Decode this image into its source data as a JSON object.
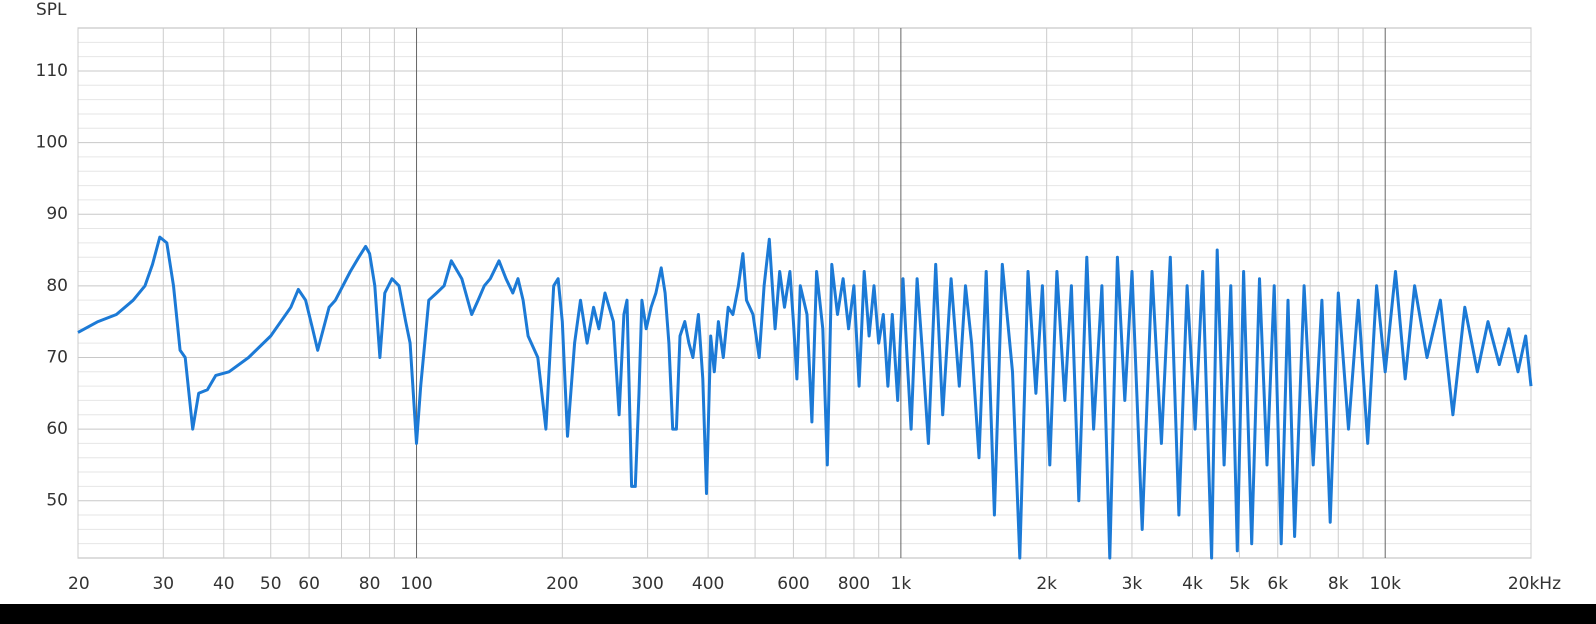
{
  "chart_data": {
    "type": "line",
    "y_label": "SPL",
    "log_x": true,
    "grid": true,
    "xlim": [
      20,
      20000
    ],
    "ylim": [
      42,
      116
    ],
    "xticks": [
      20,
      30,
      40,
      50,
      60,
      80,
      100,
      200,
      300,
      400,
      600,
      800,
      {
        "value": 1000,
        "label": "1k"
      },
      {
        "value": 2000,
        "label": "2k"
      },
      {
        "value": 3000,
        "label": "3k"
      },
      {
        "value": 4000,
        "label": "4k"
      },
      {
        "value": 5000,
        "label": "5k"
      },
      {
        "value": 6000,
        "label": "6k"
      },
      {
        "value": 8000,
        "label": "8k"
      },
      {
        "value": 10000,
        "label": "10k"
      },
      {
        "value": 20000,
        "label": "20kHz"
      }
    ],
    "xminorticks": [
      70,
      90,
      500,
      700,
      900,
      7000,
      9000
    ],
    "yticks": [
      50,
      60,
      70,
      80,
      90,
      100,
      110
    ],
    "yminorticks": [
      44,
      46,
      48,
      52,
      54,
      56,
      58,
      62,
      64,
      66,
      68,
      72,
      74,
      76,
      78,
      82,
      84,
      86,
      88,
      92,
      94,
      96,
      98,
      102,
      104,
      106,
      108,
      112,
      114
    ],
    "x": [
      20,
      22,
      24,
      26,
      27.5,
      28.5,
      29.5,
      30.5,
      31.5,
      32.5,
      33.3,
      34.5,
      35.5,
      37,
      38.5,
      41,
      45,
      50,
      55,
      57,
      59,
      61,
      62.5,
      66,
      68,
      73,
      76,
      78.5,
      80,
      82,
      84,
      86,
      89,
      92,
      95,
      97,
      100,
      102,
      106,
      110,
      114,
      118,
      124,
      130,
      134,
      138,
      142,
      148,
      153,
      158,
      162,
      166,
      170,
      178,
      185,
      192,
      196,
      200,
      205,
      212,
      218,
      225,
      232,
      238,
      245,
      255,
      262,
      268,
      272,
      278,
      283,
      288,
      292,
      298,
      305,
      312,
      320,
      326,
      332,
      338,
      344,
      350,
      358,
      365,
      372,
      382,
      390,
      397,
      405,
      412,
      420,
      430,
      440,
      450,
      462,
      472,
      480,
      495,
      510,
      522,
      535,
      550,
      562,
      575,
      590,
      600,
      610,
      620,
      640,
      655,
      670,
      690,
      705,
      720,
      740,
      760,
      780,
      800,
      820,
      840,
      860,
      880,
      900,
      920,
      940,
      960,
      985,
      1010,
      1030,
      1050,
      1080,
      1110,
      1140,
      1180,
      1220,
      1270,
      1320,
      1360,
      1400,
      1450,
      1500,
      1560,
      1620,
      1700,
      1760,
      1830,
      1900,
      1960,
      2030,
      2100,
      2180,
      2250,
      2330,
      2420,
      2500,
      2600,
      2700,
      2800,
      2900,
      3000,
      3150,
      3300,
      3450,
      3600,
      3750,
      3900,
      4050,
      4200,
      4380,
      4500,
      4650,
      4800,
      4950,
      5100,
      5300,
      5500,
      5700,
      5900,
      6100,
      6300,
      6500,
      6800,
      7100,
      7400,
      7700,
      8000,
      8400,
      8800,
      9200,
      9600,
      10000,
      10500,
      11000,
      11500,
      12200,
      13000,
      13800,
      14600,
      15500,
      16300,
      17200,
      18000,
      18800,
      19500,
      20000
    ],
    "series": [
      {
        "color": "#1c7ad6",
        "values": [
          73.5,
          75,
          76,
          78,
          80,
          83,
          86.8,
          86,
          80,
          71,
          70,
          60,
          65,
          65.5,
          67.5,
          68,
          70,
          73,
          77,
          79.5,
          78,
          74,
          71,
          77,
          78,
          82,
          84,
          85.5,
          84.5,
          80,
          70,
          79,
          81,
          80,
          75,
          72,
          58,
          66,
          78,
          79,
          80,
          83.5,
          81,
          76,
          78,
          80,
          81,
          83.5,
          81,
          79,
          81,
          78,
          73,
          70,
          60,
          80,
          81,
          75,
          59,
          72,
          78,
          72,
          77,
          74,
          79,
          75,
          62,
          76,
          78,
          52,
          52,
          65,
          78,
          74,
          77,
          79,
          82.5,
          79,
          72,
          60,
          60,
          73,
          75,
          72,
          70,
          76,
          67,
          51,
          73,
          68,
          75,
          70,
          77,
          76,
          80,
          84.5,
          78,
          76,
          70,
          80,
          86.5,
          74,
          82,
          77,
          82,
          75,
          67,
          80,
          76,
          61,
          82,
          74,
          55,
          83,
          76,
          81,
          74,
          80,
          66,
          82,
          73,
          80,
          72,
          76,
          66,
          76,
          64,
          81,
          70,
          60,
          81,
          70,
          58,
          83,
          62,
          81,
          66,
          80,
          72,
          56,
          82,
          48,
          83,
          68,
          42,
          82,
          65,
          80,
          55,
          82,
          64,
          80,
          50,
          84,
          60,
          80,
          42,
          84,
          64,
          82,
          46,
          82,
          58,
          84,
          48,
          80,
          60,
          82,
          42,
          85,
          55,
          80,
          43,
          82,
          44,
          81,
          55,
          80,
          44,
          78,
          45,
          80,
          55,
          78,
          47,
          79,
          60,
          78,
          58,
          80,
          68,
          82,
          67,
          80,
          70,
          78,
          62,
          77,
          68,
          75,
          69,
          74,
          68,
          73,
          66
        ]
      }
    ]
  }
}
